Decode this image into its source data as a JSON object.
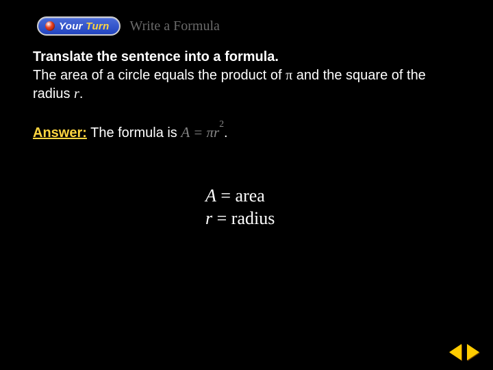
{
  "badge": {
    "your": "Your",
    "turn": "Turn"
  },
  "subtitle": "Write a Formula",
  "instruction_lead": "Translate the sentence into a formula.",
  "problem_part1": "The area of a circle equals the product of ",
  "problem_pi": "π",
  "problem_part2": " and the square of the radius ",
  "problem_r": "r",
  "problem_end": ".",
  "answer_label": "Answer:",
  "answer_text": " The formula is ",
  "formula_A": "A",
  "formula_eq": " = ",
  "formula_pi": "π",
  "formula_r": "r",
  "formula_exp": "2",
  "answer_period": ".",
  "legend": {
    "a_var": "A",
    "a_eq": " = area",
    "r_var": "r",
    "r_eq": " = radius"
  },
  "colors": {
    "background": "#000000",
    "text": "#ffffff",
    "accent": "#ffd640",
    "muted": "#888888",
    "subtitle": "#6a6a6a",
    "badge_blue": "#2244c0",
    "nav_btn": "#ffcc00"
  }
}
